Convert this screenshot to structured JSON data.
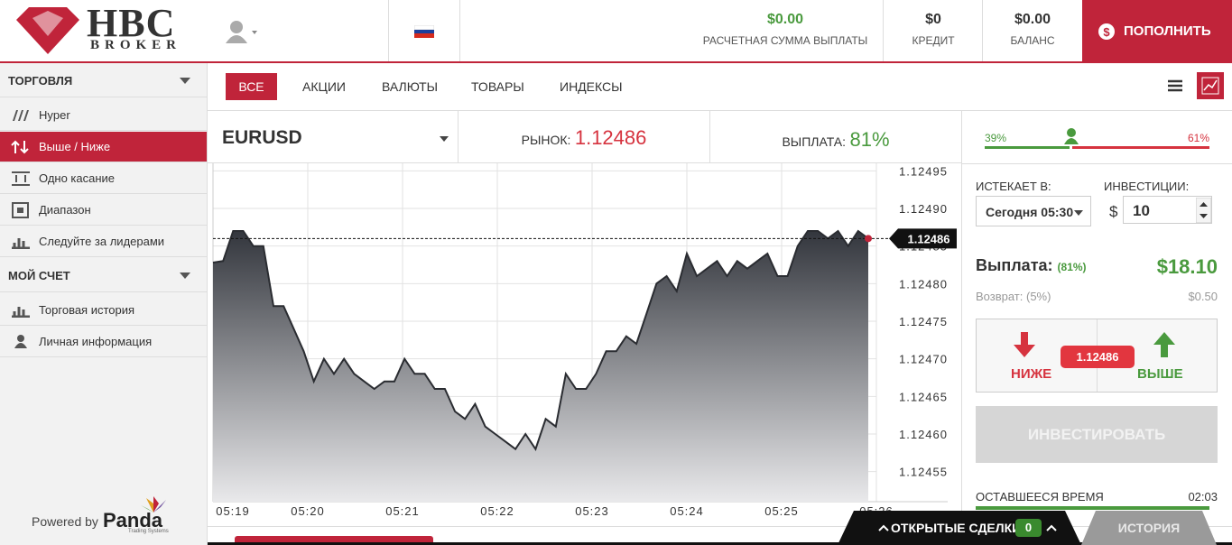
{
  "header": {
    "logo_main": "HBC",
    "logo_sub": "BROKER",
    "payout_sum": "$0.00",
    "payout_sum_label": "РАСЧЕТНАЯ СУММА ВЫПЛАТЫ",
    "credit": "$0",
    "credit_label": "КРЕДИТ",
    "balance": "$0.00",
    "balance_label": "БАЛАНС",
    "deposit_button": "ПОПОЛНИТЬ"
  },
  "sidebar": {
    "sections": [
      {
        "title": "ТОРГОВЛЯ",
        "items": [
          "Hyper",
          "Выше / Ниже",
          "Одно касание",
          "Диапазон",
          "Следуйте за лидерами"
        ]
      },
      {
        "title": "МОЙ СЧЕТ",
        "items": [
          "Торговая история",
          "Личная информация"
        ]
      }
    ],
    "powered_by": "Powered by",
    "brand": "Panda",
    "brand_sub": "Trading Systems"
  },
  "tabs": [
    "ВСЕ",
    "АКЦИИ",
    "ВАЛЮТЫ",
    "ТОВАРЫ",
    "ИНДЕКСЫ"
  ],
  "asset": {
    "symbol": "EURUSD",
    "market_label": "РЫНОК:",
    "market_value": "1.12486",
    "payout_label": "ВЫПЛАТА:",
    "payout_value": "81%"
  },
  "chart": {
    "type": "area",
    "x_labels": [
      "05:19",
      "05:20",
      "05:21",
      "05:22",
      "05:23",
      "05:24",
      "05:25",
      "05:26"
    ],
    "values": [
      1.124828,
      1.12483,
      1.12487,
      1.12487,
      1.12485,
      1.12485,
      1.12477,
      1.12477,
      1.12474,
      1.12471,
      1.12467,
      1.1247,
      1.12468,
      1.1247,
      1.12468,
      1.12467,
      1.12466,
      1.12467,
      1.12467,
      1.1247,
      1.12468,
      1.12468,
      1.12466,
      1.12466,
      1.12463,
      1.12462,
      1.12464,
      1.12461,
      1.1246,
      1.12459,
      1.12458,
      1.1246,
      1.12458,
      1.12462,
      1.12461,
      1.12468,
      1.12466,
      1.12466,
      1.12468,
      1.12471,
      1.12471,
      1.12473,
      1.12472,
      1.12476,
      1.1248,
      1.12481,
      1.12479,
      1.12484,
      1.12481,
      1.12482,
      1.12483,
      1.12481,
      1.12483,
      1.12482,
      1.12483,
      1.12484,
      1.12481,
      1.12481,
      1.12485,
      1.12487,
      1.12487,
      1.12486,
      1.12487,
      1.12485,
      1.12487,
      1.12486
    ],
    "current": 1.12486,
    "ylim": [
      1.12451,
      1.12496
    ],
    "yticks": [
      1.12495,
      {
        "value": 1.1249,
        "label": "1.12490"
      },
      1.12485,
      {
        "value": 1.1248,
        "label": "1.12480"
      },
      1.12475,
      {
        "value": 1.1247,
        "label": "1.12470"
      },
      1.12465,
      {
        "value": 1.1246,
        "label": "1.12460"
      },
      1.12455
    ],
    "grid": true
  },
  "trade_panel": {
    "sentiment_down": "39%",
    "sentiment_up": "61%",
    "expires_label": "ИСТЕКАЕТ В:",
    "expires_value": "Сегодня 05:30",
    "investment_label": "ИНВЕСТИЦИИ:",
    "currency": "$",
    "investment_value": "10",
    "payout_label": "Выплата:",
    "payout_percent": "(81%)",
    "payout_amount": "$18.10",
    "refund_label": "Возврат:",
    "refund_percent": "(5%)",
    "refund_amount": "$0.50",
    "down_button": "НИЖЕ",
    "up_button": "ВЫШЕ",
    "strike": "1.12486",
    "invest_button": "ИНВЕСТИРОВАТЬ",
    "time_left_label": "ОСТАВШЕЕСЯ ВРЕМЯ",
    "time_left": "02:03"
  },
  "footer": {
    "open_trades": "ОТКРЫТЫЕ СДЕЛКИ",
    "open_count": "0",
    "history": "ИСТОРИЯ"
  }
}
